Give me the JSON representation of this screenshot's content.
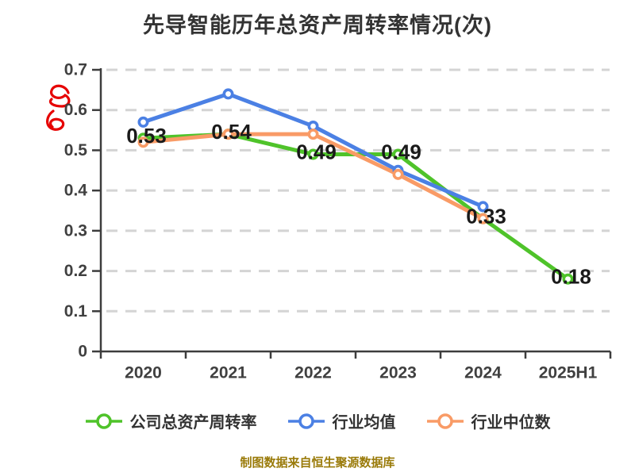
{
  "title": "先导智能历年总资产周转率情况(次)",
  "source_note": "制图数据来自恒生聚源数据库",
  "annotations": {
    "red_scribble_icon": "handwritten red scribble mark near 0.6 on y-axis"
  },
  "colors": {
    "title_text": "#333333",
    "axis_text": "#404040",
    "axis_line": "#3d3d3d",
    "grid_line": "#d4d4d4",
    "point_label_text": "#1a1a1a",
    "legend_text": "#333333",
    "source_text": "#9a7b0a",
    "scribble": "#e60000",
    "marker_fill": "#ffffff"
  },
  "chart_data": {
    "type": "line",
    "categories": [
      "2020",
      "2021",
      "2022",
      "2023",
      "2024",
      "2025H1"
    ],
    "series": [
      {
        "name": "公司总资产周转率",
        "color": "#4fc32a",
        "values": [
          0.53,
          0.54,
          0.49,
          0.49,
          0.33,
          0.18
        ],
        "point_labels": [
          "0.53",
          "0.54",
          "0.49",
          "0.49",
          "0.33",
          "0.18"
        ]
      },
      {
        "name": "行业均值",
        "color": "#4b80e4",
        "values": [
          0.57,
          0.64,
          0.56,
          0.45,
          0.36,
          null
        ],
        "point_labels": null
      },
      {
        "name": "行业中位数",
        "color": "#f99b66",
        "values": [
          0.52,
          0.54,
          0.54,
          0.44,
          0.33,
          null
        ],
        "point_labels": null
      }
    ],
    "ylim": [
      0,
      0.7
    ],
    "ytick_labels": [
      "0",
      "0.1",
      "0.2",
      "0.3",
      "0.4",
      "0.5",
      "0.6",
      "0.7"
    ],
    "grid": "dashed-horizontal",
    "legend_position": "bottom",
    "xlabel": "",
    "ylabel": ""
  }
}
